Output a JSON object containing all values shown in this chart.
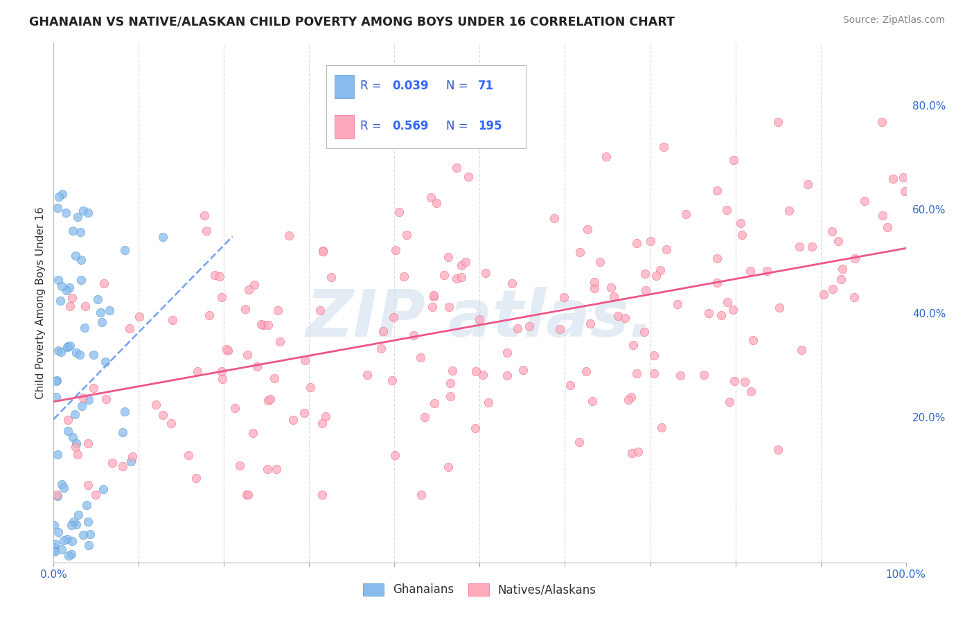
{
  "title": "GHANAIAN VS NATIVE/ALASKAN CHILD POVERTY AMONG BOYS UNDER 16 CORRELATION CHART",
  "source": "Source: ZipAtlas.com",
  "ylabel": "Child Poverty Among Boys Under 16",
  "xlim": [
    0.0,
    1.0
  ],
  "ylim": [
    -0.08,
    0.92
  ],
  "x_tick_labels": [
    "0.0%",
    "",
    "",
    "",
    "",
    "",
    "",
    "",
    "",
    "",
    "100.0%"
  ],
  "y_ticks": [
    0.2,
    0.4,
    0.6,
    0.8
  ],
  "y_tick_labels": [
    "20.0%",
    "40.0%",
    "60.0%",
    "80.0%"
  ],
  "ghanaian_color": "#88BBEE",
  "ghanaian_edge": "#5599CC",
  "native_color": "#FFAABC",
  "native_edge": "#EE6688",
  "ghanaian_R": "0.039",
  "ghanaian_N": "71",
  "native_R": "0.569",
  "native_N": "195",
  "trendline_blue": "#6699EE",
  "trendline_pink": "#EE5588",
  "legend_text_color": "#3355CC",
  "legend_value_color": "#3366FF",
  "watermark_color": "#CCDDEE",
  "background_color": "#FFFFFF",
  "grid_color": "#DDDDDD",
  "tick_color": "#3366CC",
  "title_color": "#222222",
  "source_color": "#888888",
  "ylabel_color": "#333333"
}
